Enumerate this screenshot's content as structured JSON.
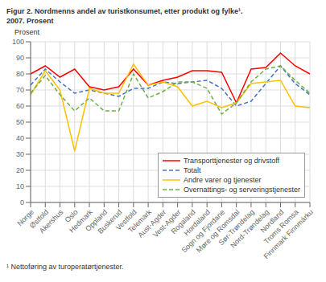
{
  "chart_data": {
    "type": "line",
    "title": "Figur 2. Nordmenns andel av turistkonsumet, etter produkt og fylke¹.",
    "subtitle": "2007. Prosent",
    "y_label": "Prosent",
    "annotations": [
      "¹ Nettoføring av turoperatørtjenester."
    ],
    "categories": [
      "Norge",
      "Østfold",
      "Akershus",
      "Oslo",
      "Hedmark",
      "Oppland",
      "Buskerud",
      "Vestfold",
      "Telemark",
      "Aust-Agder",
      "Vest-Agder",
      "Rogaland",
      "Hordaland",
      "Sogn og Fjordane",
      "Møre og Romsdal",
      "Sør-Trøndelag",
      "Nord-Trøndelag",
      "Nordland",
      "Troms Romsa",
      "Finnmark Finnmárku"
    ],
    "series": [
      {
        "name": "Transporttjenester og drivstoff",
        "values": [
          80,
          85,
          78,
          83,
          72,
          70,
          72,
          83,
          73,
          76,
          78,
          82,
          82,
          81,
          62,
          83,
          84,
          93,
          85,
          80
        ],
        "color": "#FF0000",
        "line_style": "solid"
      },
      {
        "name": "Totalt",
        "values": [
          73,
          83,
          75,
          68,
          70,
          68,
          66,
          71,
          71,
          75,
          74,
          75,
          76,
          71,
          60,
          63,
          74,
          85,
          74,
          67
        ],
        "color": "#4472C4",
        "line_style": "dashed"
      },
      {
        "name": "Andre varer og tjenester",
        "values": [
          67,
          82,
          70,
          32,
          71,
          68,
          68,
          86,
          73,
          75,
          72,
          60,
          63,
          59,
          62,
          74,
          75,
          76,
          60,
          59
        ],
        "color": "#FFC000",
        "line_style": "solid"
      },
      {
        "name": "Overnattings- og serveringstjenester",
        "values": [
          68,
          79,
          67,
          57,
          65,
          57,
          57,
          80,
          65,
          69,
          75,
          75,
          71,
          55,
          62,
          75,
          83,
          85,
          76,
          68
        ],
        "color": "#70AD47",
        "line_style": "dashed"
      }
    ],
    "ylim": [
      0,
      100
    ],
    "yticks": [
      0,
      10,
      20,
      30,
      40,
      50,
      60,
      70,
      80,
      90,
      100
    ],
    "grid": true,
    "legend": "lower right"
  }
}
